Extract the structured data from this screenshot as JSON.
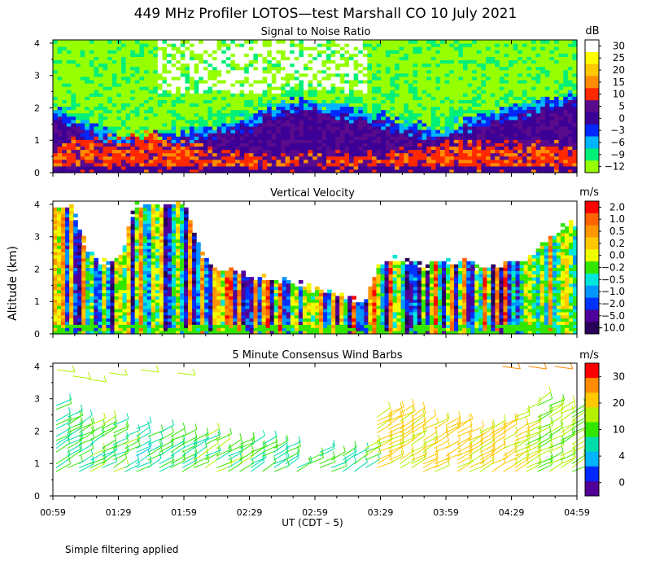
{
  "title": "449 MHz Profiler LOTOS—test Marshall CO 10 July 2021",
  "y_axis_label": "Altitude (km)",
  "x_axis_label": "UT  (CDT – 5)",
  "footer_note": "Simple filtering applied",
  "chart_data": [
    {
      "type": "heatmap",
      "title": "Signal to Noise Ratio",
      "colorbar_unit": "dB",
      "colorbar_labels": [
        "30",
        "25",
        "20",
        "15",
        "10",
        "5",
        "0",
        "−3",
        "−6",
        "−9",
        "−12"
      ],
      "colorbar_colors": [
        "#ffffff",
        "#ffff00",
        "#ffc800",
        "#ff8c00",
        "#ff2800",
        "#5a0a8c",
        "#3c0096",
        "#0028ff",
        "#00b4ff",
        "#00f078",
        "#96ff00"
      ],
      "x_ticks": [
        "00:59",
        "01:29",
        "01:59",
        "02:29",
        "02:59",
        "03:29",
        "03:59",
        "04:29",
        "04:59"
      ],
      "x_range_hours": [
        0.983,
        4.983
      ],
      "y_ticks": [
        "0",
        "1",
        "2",
        "3",
        "4"
      ],
      "ylim": [
        0,
        4.1
      ],
      "noise_floor_km": [
        1.7,
        1.5,
        1.2,
        1.0,
        0.85,
        0.8,
        0.75,
        0.9,
        1.0,
        1.1,
        1.2,
        1.3,
        1.4,
        1.7,
        1.9,
        2.0,
        1.9,
        1.8,
        1.7,
        1.6,
        1.5,
        1.4,
        1.2,
        1.1,
        1.1,
        1.3,
        1.5,
        1.6,
        1.7,
        1.8,
        2.0,
        2.1,
        2.2
      ],
      "high_snr_top_km": [
        0.8,
        1.0,
        1.2,
        1.1,
        1.0,
        1.1,
        1.3,
        1.0,
        0.9,
        0.8,
        0.7,
        0.6,
        0.55,
        0.5,
        0.5,
        0.5,
        0.5,
        0.5,
        0.6,
        0.5,
        0.55,
        0.6,
        0.7,
        0.8,
        0.9,
        0.95,
        0.9,
        0.8,
        0.85,
        0.9,
        0.8,
        0.85,
        0.8
      ]
    },
    {
      "type": "heatmap",
      "title": "Vertical Velocity",
      "colorbar_unit": "m/s",
      "colorbar_labels": [
        "2.0",
        "1.0",
        "0.5",
        "0.2",
        "0.0",
        "−0.2",
        "−0.5",
        "−1.0",
        "−2.0",
        "−5.0",
        "−10.0"
      ],
      "colorbar_colors": [
        "#ff0000",
        "#ff6400",
        "#ff9600",
        "#ffc800",
        "#f0ff00",
        "#32e600",
        "#00e6dc",
        "#0096ff",
        "#0032ff",
        "#50009a",
        "#28005a"
      ],
      "x_ticks": [
        "00:59",
        "01:29",
        "01:59",
        "02:29",
        "02:59",
        "03:29",
        "03:59",
        "04:29",
        "04:59"
      ],
      "x_range_hours": [
        0.983,
        4.983
      ],
      "y_ticks": [
        "0",
        "1",
        "2",
        "3",
        "4"
      ],
      "ylim": [
        0,
        4.1
      ],
      "valid_data_top_km": [
        4.0,
        4.0,
        2.5,
        2.2,
        2.3,
        4.0,
        4.0,
        4.0,
        4.0,
        2.5,
        2.0,
        2.0,
        1.8,
        1.7,
        1.6,
        1.5,
        1.4,
        1.3,
        1.2,
        1.0,
        2.2,
        2.3,
        2.2,
        2.1,
        2.2,
        2.2,
        2.1,
        2.0,
        2.2,
        2.3,
        2.8,
        3.2,
        3.4
      ]
    },
    {
      "type": "scatter",
      "title": "5 Minute Consensus Wind Barbs",
      "colorbar_unit": "m/s",
      "colorbar_labels": [
        "30",
        "20",
        "10",
        "4",
        "0"
      ],
      "colorbar_colors": [
        "#ff0000",
        "#ff8c00",
        "#ffc800",
        "#b4f000",
        "#32e600",
        "#00dcaa",
        "#00b4ff",
        "#0028ff",
        "#500096"
      ],
      "x_ticks": [
        "00:59",
        "01:29",
        "01:59",
        "02:29",
        "02:59",
        "03:29",
        "03:59",
        "04:29",
        "04:59"
      ],
      "x_range_hours": [
        0.983,
        4.983
      ],
      "y_ticks": [
        "0",
        "1",
        "2",
        "3",
        "4"
      ],
      "ylim": [
        0,
        4.1
      ],
      "lower_wind_top_km": [
        2.8,
        2.6,
        2.4,
        2.3,
        2.2,
        2.1,
        2.0,
        1.9,
        1.9,
        2.0,
        1.8,
        1.7,
        1.6,
        1.6,
        1.5,
        1.5,
        1.4,
        1.4,
        1.3,
        1.2,
        2.6,
        2.6,
        2.5,
        2.4,
        2.3,
        2.3,
        2.2,
        2.2,
        2.3,
        2.7,
        3.0,
        2.8,
        2.6
      ],
      "wind_speed_ms": [
        8,
        8,
        9,
        8,
        9,
        7,
        6,
        9,
        8,
        9,
        9,
        9,
        8,
        8,
        8,
        7,
        7,
        8,
        8,
        8,
        17,
        16,
        16,
        17,
        18,
        17,
        16,
        17,
        16,
        14,
        12,
        12,
        12
      ]
    }
  ]
}
